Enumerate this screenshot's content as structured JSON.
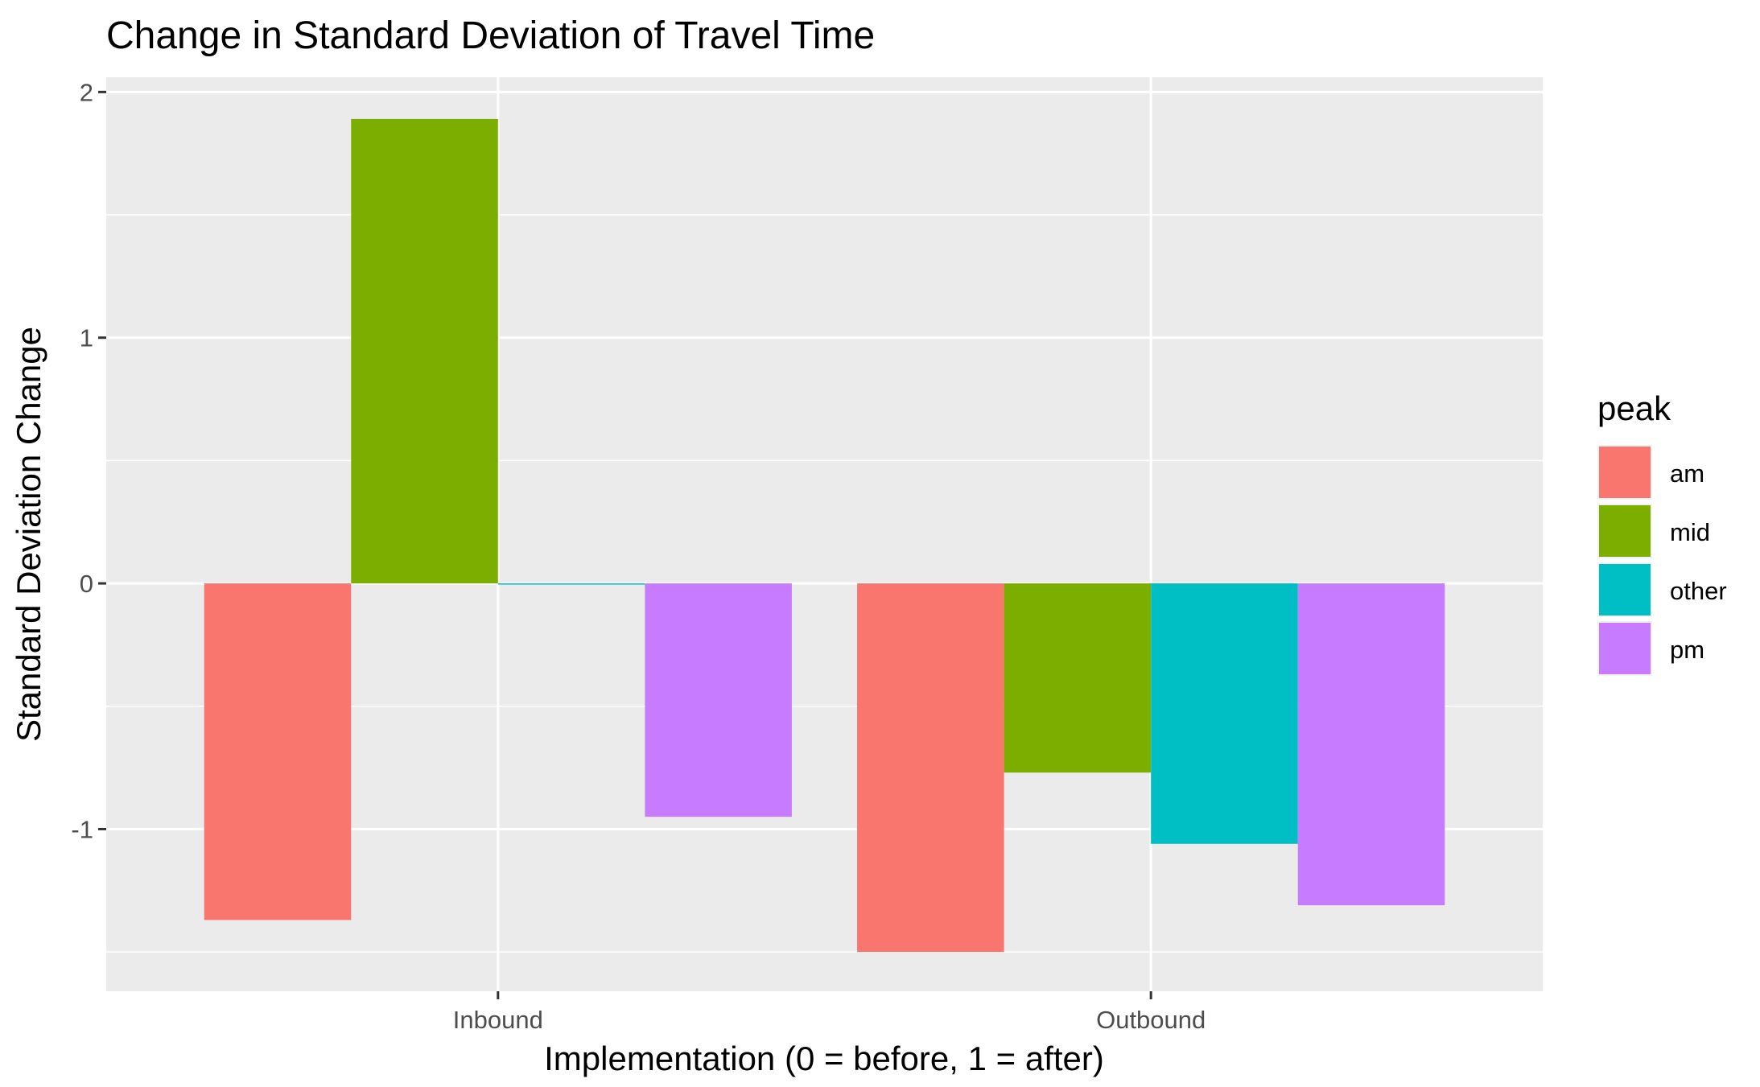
{
  "chart_data": {
    "type": "bar",
    "title": "Change in Standard Deviation of Travel Time",
    "xlabel": "Implementation (0 = before, 1 = after)",
    "ylabel": "Standard Deviation Change",
    "categories": [
      "Inbound",
      "Outbound"
    ],
    "series": [
      {
        "name": "am",
        "color": "#F8766D",
        "values": [
          -1.37,
          -1.5
        ]
      },
      {
        "name": "mid",
        "color": "#7CAE00",
        "values": [
          1.89,
          -0.77
        ]
      },
      {
        "name": "other",
        "color": "#00BFC4",
        "values": [
          -0.005,
          -1.06
        ]
      },
      {
        "name": "pm",
        "color": "#C77CFF",
        "values": [
          -0.95,
          -1.31
        ]
      }
    ],
    "ylim": [
      -1.66,
      2.06
    ],
    "yticks": [
      -1,
      0,
      1,
      2
    ],
    "ytick_labels": [
      "-1",
      "0",
      "1",
      "2"
    ],
    "legend": {
      "title": "peak",
      "position": "right"
    },
    "grid": true,
    "panel_background": "#EBEBEB"
  }
}
